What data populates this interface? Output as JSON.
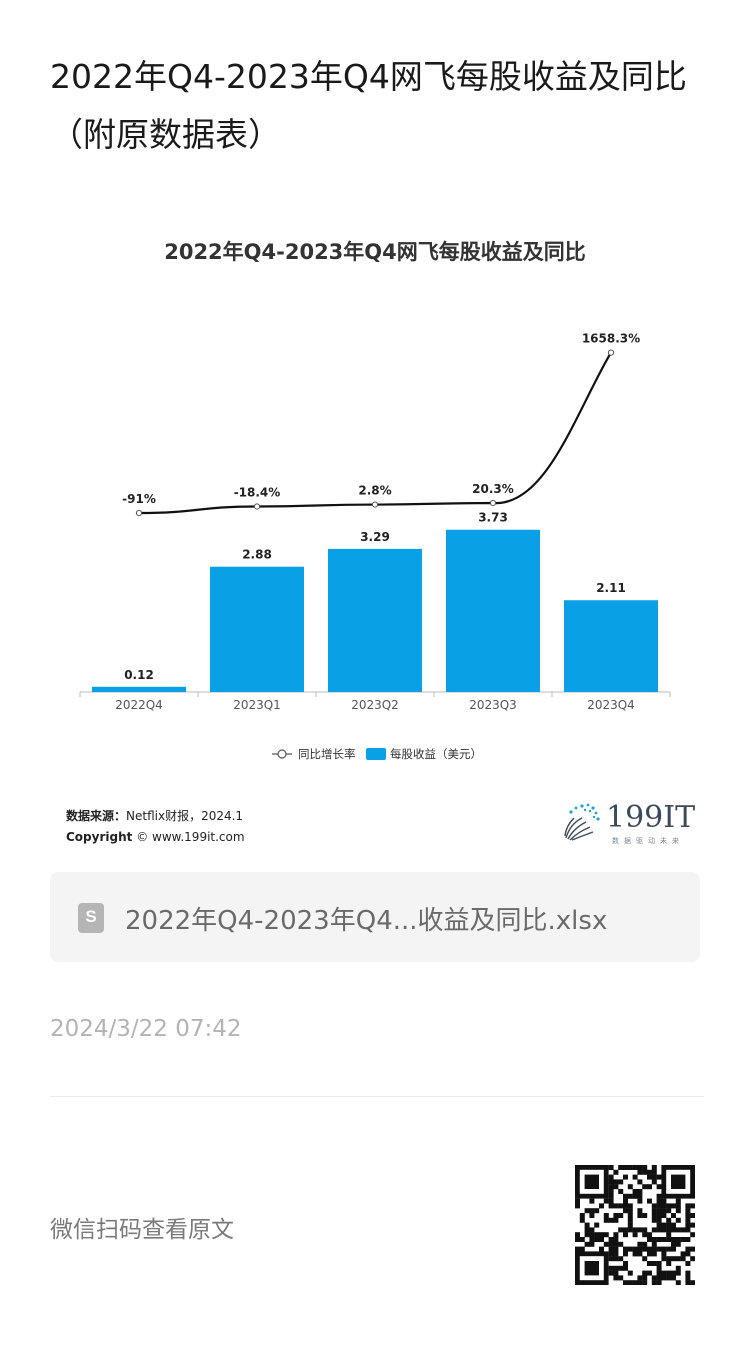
{
  "page": {
    "title": "2022年Q4-2023年Q4网飞每股收益及同比（附原数据表）",
    "attachment_name": "2022年Q4-2023年Q4...收益及同比.xlsx",
    "attachment_icon": "spreadsheet-file-icon",
    "timestamp": "2024/3/22 07:42",
    "wechat_prompt": "微信扫码查看原文"
  },
  "source": {
    "label": "数据来源：",
    "text": "Netflix财报，2024.1",
    "copyright_label": "Copyright",
    "copyright_text": "© www.199it.com"
  },
  "logo": {
    "text": "199IT",
    "subtitle": "数据驱动未来"
  },
  "colors": {
    "bar": "#0aa0e6",
    "line": "#111111",
    "axis": "#bbbbbb"
  },
  "chart_data": {
    "type": "bar",
    "title": "2022年Q4-2023年Q4网飞每股收益及同比",
    "categories": [
      "2022Q4",
      "2023Q1",
      "2023Q2",
      "2023Q3",
      "2023Q4"
    ],
    "series": [
      {
        "name": "每股收益（美元）",
        "type": "bar",
        "values": [
          0.12,
          2.88,
          3.29,
          3.73,
          2.11
        ],
        "labels": [
          "0.12",
          "2.88",
          "3.29",
          "3.73",
          "2.11"
        ]
      },
      {
        "name": "同比增长率",
        "type": "line",
        "values": [
          -91,
          -18.4,
          2.8,
          20.3,
          1658.3
        ],
        "labels": [
          "-91%",
          "-18.4%",
          "2.8%",
          "20.3%",
          "1658.3%"
        ]
      }
    ],
    "legend": "bottom",
    "grid": false
  }
}
